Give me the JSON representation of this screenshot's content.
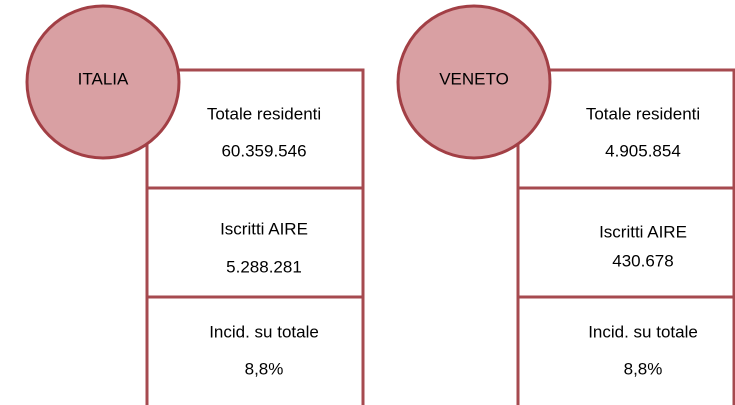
{
  "panels": [
    {
      "title": "ITALIA",
      "boxes": [
        {
          "label": "Totale residenti",
          "value": "60.359.546"
        },
        {
          "label": "Iscritti AIRE",
          "value": "5.288.281"
        },
        {
          "label": "Incid. su totale",
          "value": "8,8%"
        }
      ]
    },
    {
      "title": "VENETO",
      "boxes": [
        {
          "label": "Totale residenti",
          "value": "4.905.854"
        },
        {
          "label": "Iscritti AIRE",
          "value": "430.678"
        },
        {
          "label": "Incid. su totale",
          "value": "8,8%"
        }
      ]
    }
  ]
}
